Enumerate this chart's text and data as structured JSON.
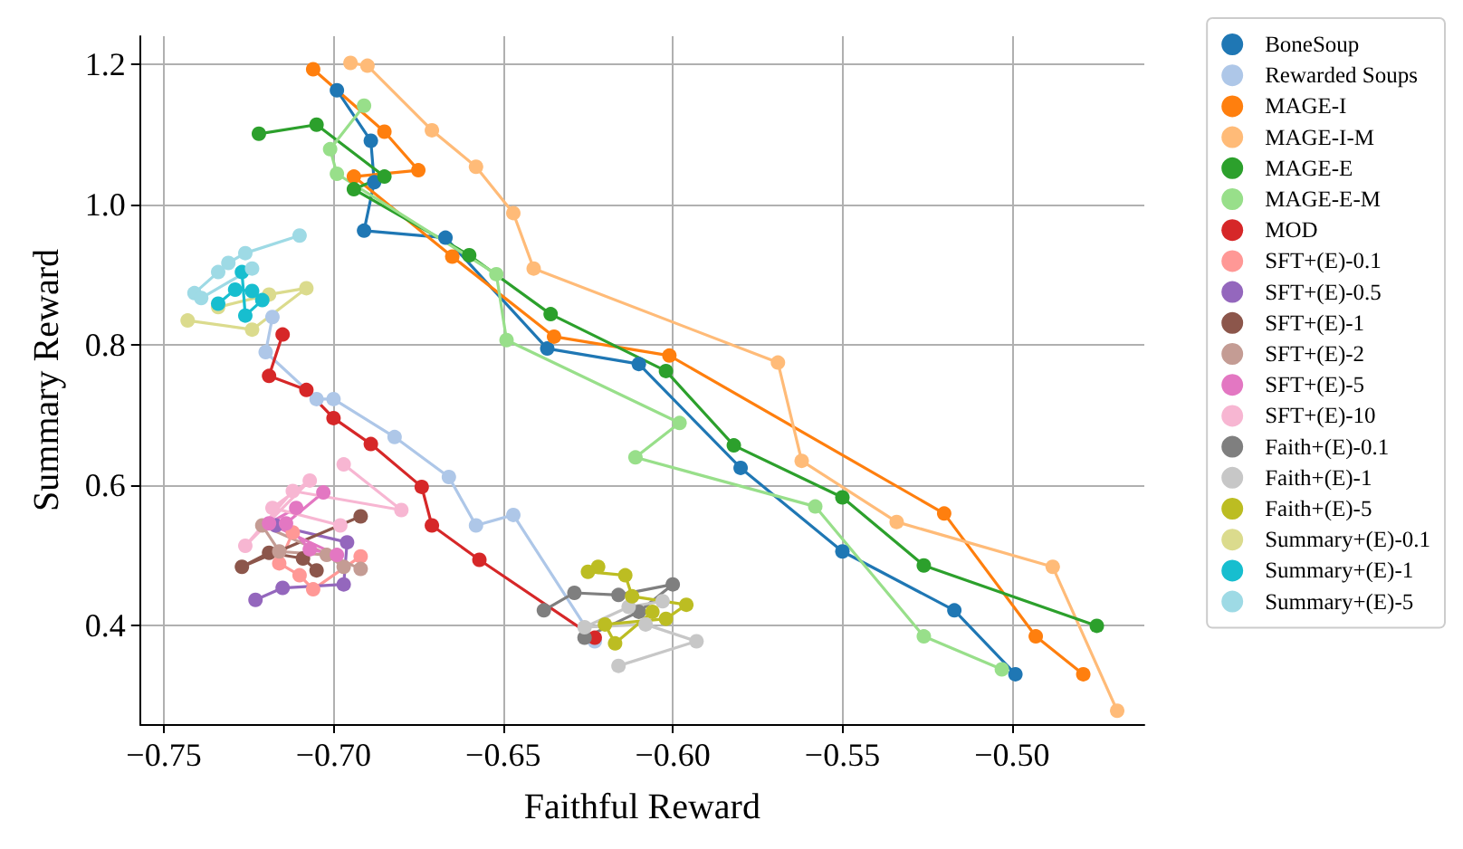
{
  "chart_data": {
    "type": "line",
    "xlabel": "Faithful Reward",
    "ylabel": "Summary Reward",
    "xlim": [
      -0.757,
      -0.461
    ],
    "ylim": [
      0.26,
      1.24
    ],
    "xticks": [
      {
        "value": -0.75,
        "label": "−0.75"
      },
      {
        "value": -0.7,
        "label": "−0.70"
      },
      {
        "value": -0.65,
        "label": "−0.65"
      },
      {
        "value": -0.6,
        "label": "−0.60"
      },
      {
        "value": -0.55,
        "label": "−0.55"
      },
      {
        "value": -0.5,
        "label": "−0.50"
      }
    ],
    "yticks": [
      {
        "value": 0.4,
        "label": "0.4"
      },
      {
        "value": 0.6,
        "label": "0.6"
      },
      {
        "value": 0.8,
        "label": "0.8"
      },
      {
        "value": 1.0,
        "label": "1.0"
      },
      {
        "value": 1.2,
        "label": "1.2"
      }
    ],
    "grid": true,
    "legend": "right",
    "marker": "circle",
    "line_style": "solid",
    "series": [
      {
        "name": "BoneSoup",
        "color": "#1f77b4",
        "x": [
          -0.699,
          -0.689,
          -0.688,
          -0.691,
          -0.667,
          -0.637,
          -0.61,
          -0.58,
          -0.55,
          -0.517,
          -0.499
        ],
        "values": [
          1.163,
          1.091,
          1.032,
          0.963,
          0.953,
          0.795,
          0.773,
          0.625,
          0.506,
          0.422,
          0.331
        ]
      },
      {
        "name": "Rewarded Soups",
        "color": "#aec7e8",
        "x": [
          -0.718,
          -0.72,
          -0.705,
          -0.7,
          -0.682,
          -0.666,
          -0.658,
          -0.647,
          -0.623
        ],
        "values": [
          0.84,
          0.79,
          0.723,
          0.723,
          0.669,
          0.612,
          0.543,
          0.558,
          0.378
        ]
      },
      {
        "name": "MAGE-I",
        "color": "#ff7f0e",
        "x": [
          -0.706,
          -0.685,
          -0.675,
          -0.694,
          -0.665,
          -0.635,
          -0.601,
          -0.52,
          -0.493,
          -0.479
        ],
        "values": [
          1.193,
          1.104,
          1.049,
          1.04,
          0.926,
          0.812,
          0.785,
          0.56,
          0.385,
          0.331
        ]
      },
      {
        "name": "MAGE-I-M",
        "color": "#ffbb78",
        "x": [
          -0.695,
          -0.69,
          -0.671,
          -0.658,
          -0.647,
          -0.641,
          -0.569,
          -0.562,
          -0.534,
          -0.488,
          -0.469
        ],
        "values": [
          1.202,
          1.198,
          1.106,
          1.054,
          0.988,
          0.909,
          0.775,
          0.635,
          0.548,
          0.484,
          0.279
        ]
      },
      {
        "name": "MAGE-E",
        "color": "#2ca02c",
        "x": [
          -0.722,
          -0.705,
          -0.685,
          -0.694,
          -0.66,
          -0.636,
          -0.602,
          -0.582,
          -0.55,
          -0.526,
          -0.475
        ],
        "values": [
          1.101,
          1.114,
          1.04,
          1.022,
          0.928,
          0.844,
          0.763,
          0.657,
          0.583,
          0.486,
          0.4
        ]
      },
      {
        "name": "MAGE-E-M",
        "color": "#98df8a",
        "x": [
          -0.691,
          -0.701,
          -0.699,
          -0.652,
          -0.649,
          -0.598,
          -0.611,
          -0.558,
          -0.526,
          -0.503
        ],
        "values": [
          1.141,
          1.079,
          1.044,
          0.901,
          0.807,
          0.689,
          0.64,
          0.57,
          0.385,
          0.338
        ]
      },
      {
        "name": "MOD",
        "color": "#d62728",
        "x": [
          -0.715,
          -0.719,
          -0.708,
          -0.7,
          -0.689,
          -0.674,
          -0.671,
          -0.657,
          -0.623
        ],
        "values": [
          0.815,
          0.756,
          0.736,
          0.696,
          0.659,
          0.598,
          0.543,
          0.494,
          0.383
        ]
      },
      {
        "name": "SFT+(E)-0.1",
        "color": "#ff9896",
        "x": [
          -0.692,
          -0.706,
          -0.71,
          -0.716,
          -0.712
        ],
        "values": [
          0.499,
          0.452,
          0.472,
          0.489,
          0.533
        ]
      },
      {
        "name": "SFT+(E)-0.5",
        "color": "#9467bd",
        "x": [
          -0.723,
          -0.715,
          -0.697,
          -0.696,
          -0.717
        ],
        "values": [
          0.437,
          0.454,
          0.459,
          0.519,
          0.543
        ]
      },
      {
        "name": "SFT+(E)-1",
        "color": "#8c564b",
        "x": [
          -0.692,
          -0.727,
          -0.719,
          -0.709,
          -0.705
        ],
        "values": [
          0.556,
          0.484,
          0.504,
          0.496,
          0.479
        ]
      },
      {
        "name": "SFT+(E)-2",
        "color": "#c49c94",
        "x": [
          -0.692,
          -0.721,
          -0.716,
          -0.702,
          -0.697
        ],
        "values": [
          0.481,
          0.543,
          0.506,
          0.501,
          0.484
        ]
      },
      {
        "name": "SFT+(E)-5",
        "color": "#e377c2",
        "x": [
          -0.703,
          -0.714,
          -0.707,
          -0.699,
          -0.719,
          -0.711
        ],
        "values": [
          0.59,
          0.546,
          0.509,
          0.501,
          0.546,
          0.568
        ]
      },
      {
        "name": "SFT+(E)-10",
        "color": "#f7b6d2",
        "x": [
          -0.697,
          -0.68,
          -0.712,
          -0.726,
          -0.707,
          -0.718,
          -0.698
        ],
        "values": [
          0.63,
          0.565,
          0.592,
          0.514,
          0.607,
          0.568,
          0.543
        ]
      },
      {
        "name": "Faith+(E)-0.1",
        "color": "#7f7f7f",
        "x": [
          -0.638,
          -0.629,
          -0.616,
          -0.6,
          -0.61,
          -0.626
        ],
        "values": [
          0.422,
          0.447,
          0.444,
          0.459,
          0.42,
          0.383
        ]
      },
      {
        "name": "Faith+(E)-1",
        "color": "#c7c7c7",
        "x": [
          -0.616,
          -0.593,
          -0.608,
          -0.626,
          -0.613,
          -0.603
        ],
        "values": [
          0.343,
          0.378,
          0.402,
          0.398,
          0.427,
          0.435
        ]
      },
      {
        "name": "Faith+(E)-5",
        "color": "#bcbd22",
        "x": [
          -0.622,
          -0.625,
          -0.614,
          -0.612,
          -0.596,
          -0.602,
          -0.62,
          -0.617,
          -0.606
        ],
        "values": [
          0.484,
          0.477,
          0.472,
          0.442,
          0.43,
          0.41,
          0.402,
          0.375,
          0.42
        ]
      },
      {
        "name": "Summary+(E)-0.1",
        "color": "#dbdb8d",
        "x": [
          -0.743,
          -0.724,
          -0.708,
          -0.719,
          -0.734
        ],
        "values": [
          0.835,
          0.822,
          0.881,
          0.872,
          0.854
        ]
      },
      {
        "name": "Summary+(E)-1",
        "color": "#17becf",
        "x": [
          -0.734,
          -0.729,
          -0.724,
          -0.721,
          -0.726,
          -0.727
        ],
        "values": [
          0.859,
          0.879,
          0.877,
          0.864,
          0.842,
          0.904
        ]
      },
      {
        "name": "Summary+(E)-5",
        "color": "#9edae5",
        "x": [
          -0.71,
          -0.726,
          -0.731,
          -0.734,
          -0.741,
          -0.739,
          -0.724
        ],
        "values": [
          0.956,
          0.931,
          0.917,
          0.904,
          0.874,
          0.867,
          0.909
        ]
      }
    ]
  }
}
